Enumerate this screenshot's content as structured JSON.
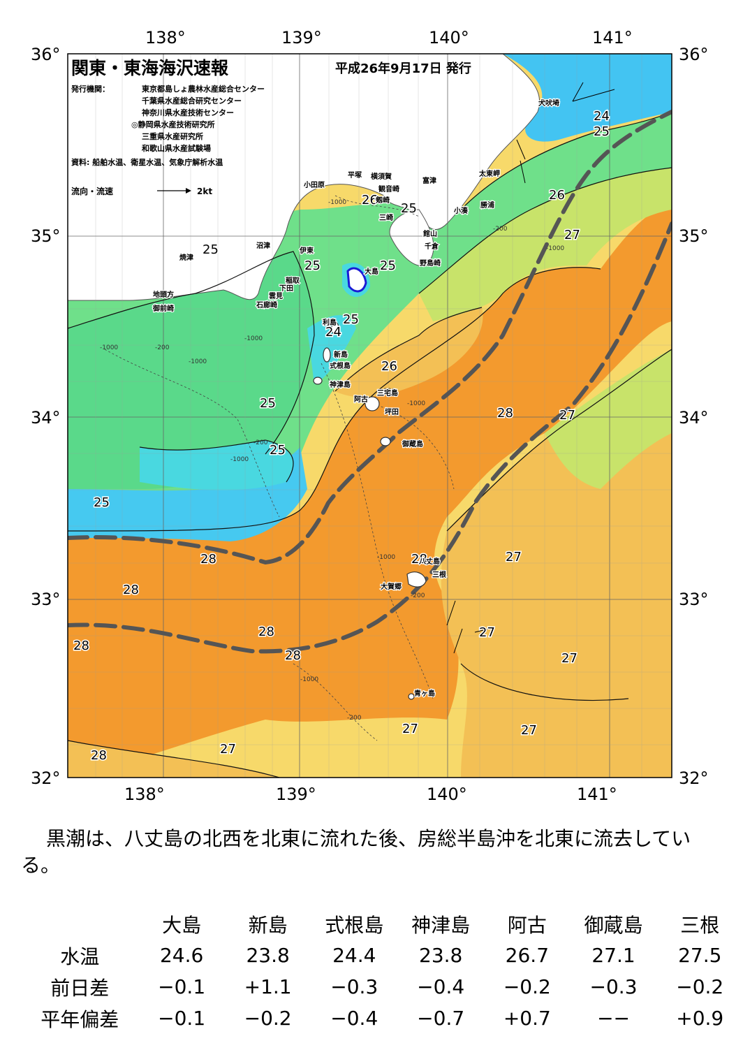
{
  "map": {
    "title": "関東・東海海沢速報",
    "date": "平成26年9月17日 発行",
    "issuer_label": "発行機関：",
    "issuers": [
      "東京都島しょ農林水産総合センター",
      "千葉県水産総合研究センター",
      "神奈川県水産技術センター",
      "◎静岡県水産技術研究所",
      "三重県水産研究所",
      "和歌山県水産試験場"
    ],
    "source": "資料: 船舶水温、衛星水温、気象庁解析水温",
    "flow_legend_label": "流向・流速",
    "flow_legend_unit": "2kt",
    "lon_labels": [
      "138°",
      "139°",
      "140°",
      "141°"
    ],
    "lat_labels": [
      "36°",
      "35°",
      "34°",
      "33°",
      "32°"
    ],
    "isotherm_labels": [
      "24",
      "25",
      "25",
      "25",
      "26",
      "27",
      "25",
      "25",
      "25",
      "24",
      "26",
      "25",
      "25",
      "25",
      "28",
      "27",
      "28",
      "27",
      "28",
      "28",
      "28",
      "28",
      "27",
      "27",
      "27",
      "27",
      "27",
      "28",
      "27",
      "28",
      "24",
      "26",
      "27"
    ],
    "depth_labels": [
      "-1000",
      "-1000",
      "-200",
      "-1000",
      "-200",
      "-1000",
      "-1000",
      "-200",
      "-1000",
      "-200",
      "-1000",
      "-1000",
      "-200",
      "-1000",
      "-200"
    ],
    "place_names": [
      "犬吠埼",
      "太東岬",
      "勝浦",
      "小湊",
      "富津",
      "横須賀",
      "平塚",
      "観音崎",
      "剱崎",
      "三崎",
      "小田原",
      "館山",
      "千倉",
      "野島崎",
      "沼津",
      "伊東",
      "焼津",
      "稲取",
      "下田",
      "雲見",
      "石廊崎",
      "大島",
      "地頭方",
      "御前崎",
      "利島",
      "新島",
      "式根島",
      "神津島",
      "三宅島",
      "阿古",
      "坪田",
      "御蔵島",
      "八丈島",
      "三根",
      "大賀郷",
      "青ヶ島"
    ],
    "colors": {
      "lt25": "#46e3c8",
      "t25": "#5ee08f",
      "t26": "#b9e85e",
      "t27": "#f3c055",
      "t28": "#f39a2e",
      "cold": "#43c4f2",
      "kuroshio": "#555555",
      "land": "#ffffff"
    }
  },
  "summary": "黒潮は、八丈島の北西を北東に流れた後、房総半島沖を北東に流去している。",
  "table": {
    "columns": [
      "大島",
      "新島",
      "式根島",
      "神津島",
      "阿古",
      "御蔵島",
      "三根"
    ],
    "rows": [
      {
        "label": "水温",
        "values": [
          "24.6",
          "23.8",
          "24.4",
          "23.8",
          "26.7",
          "27.1",
          "27.5"
        ]
      },
      {
        "label": "前日差",
        "values": [
          "−0.1",
          "+1.1",
          "−0.3",
          "−0.4",
          "−0.2",
          "−0.3",
          "−0.2"
        ]
      },
      {
        "label": "平年偏差",
        "values": [
          "−0.1",
          "−0.2",
          "−0.4",
          "−0.7",
          "+0.7",
          "−−",
          "+0.9"
        ]
      }
    ]
  }
}
